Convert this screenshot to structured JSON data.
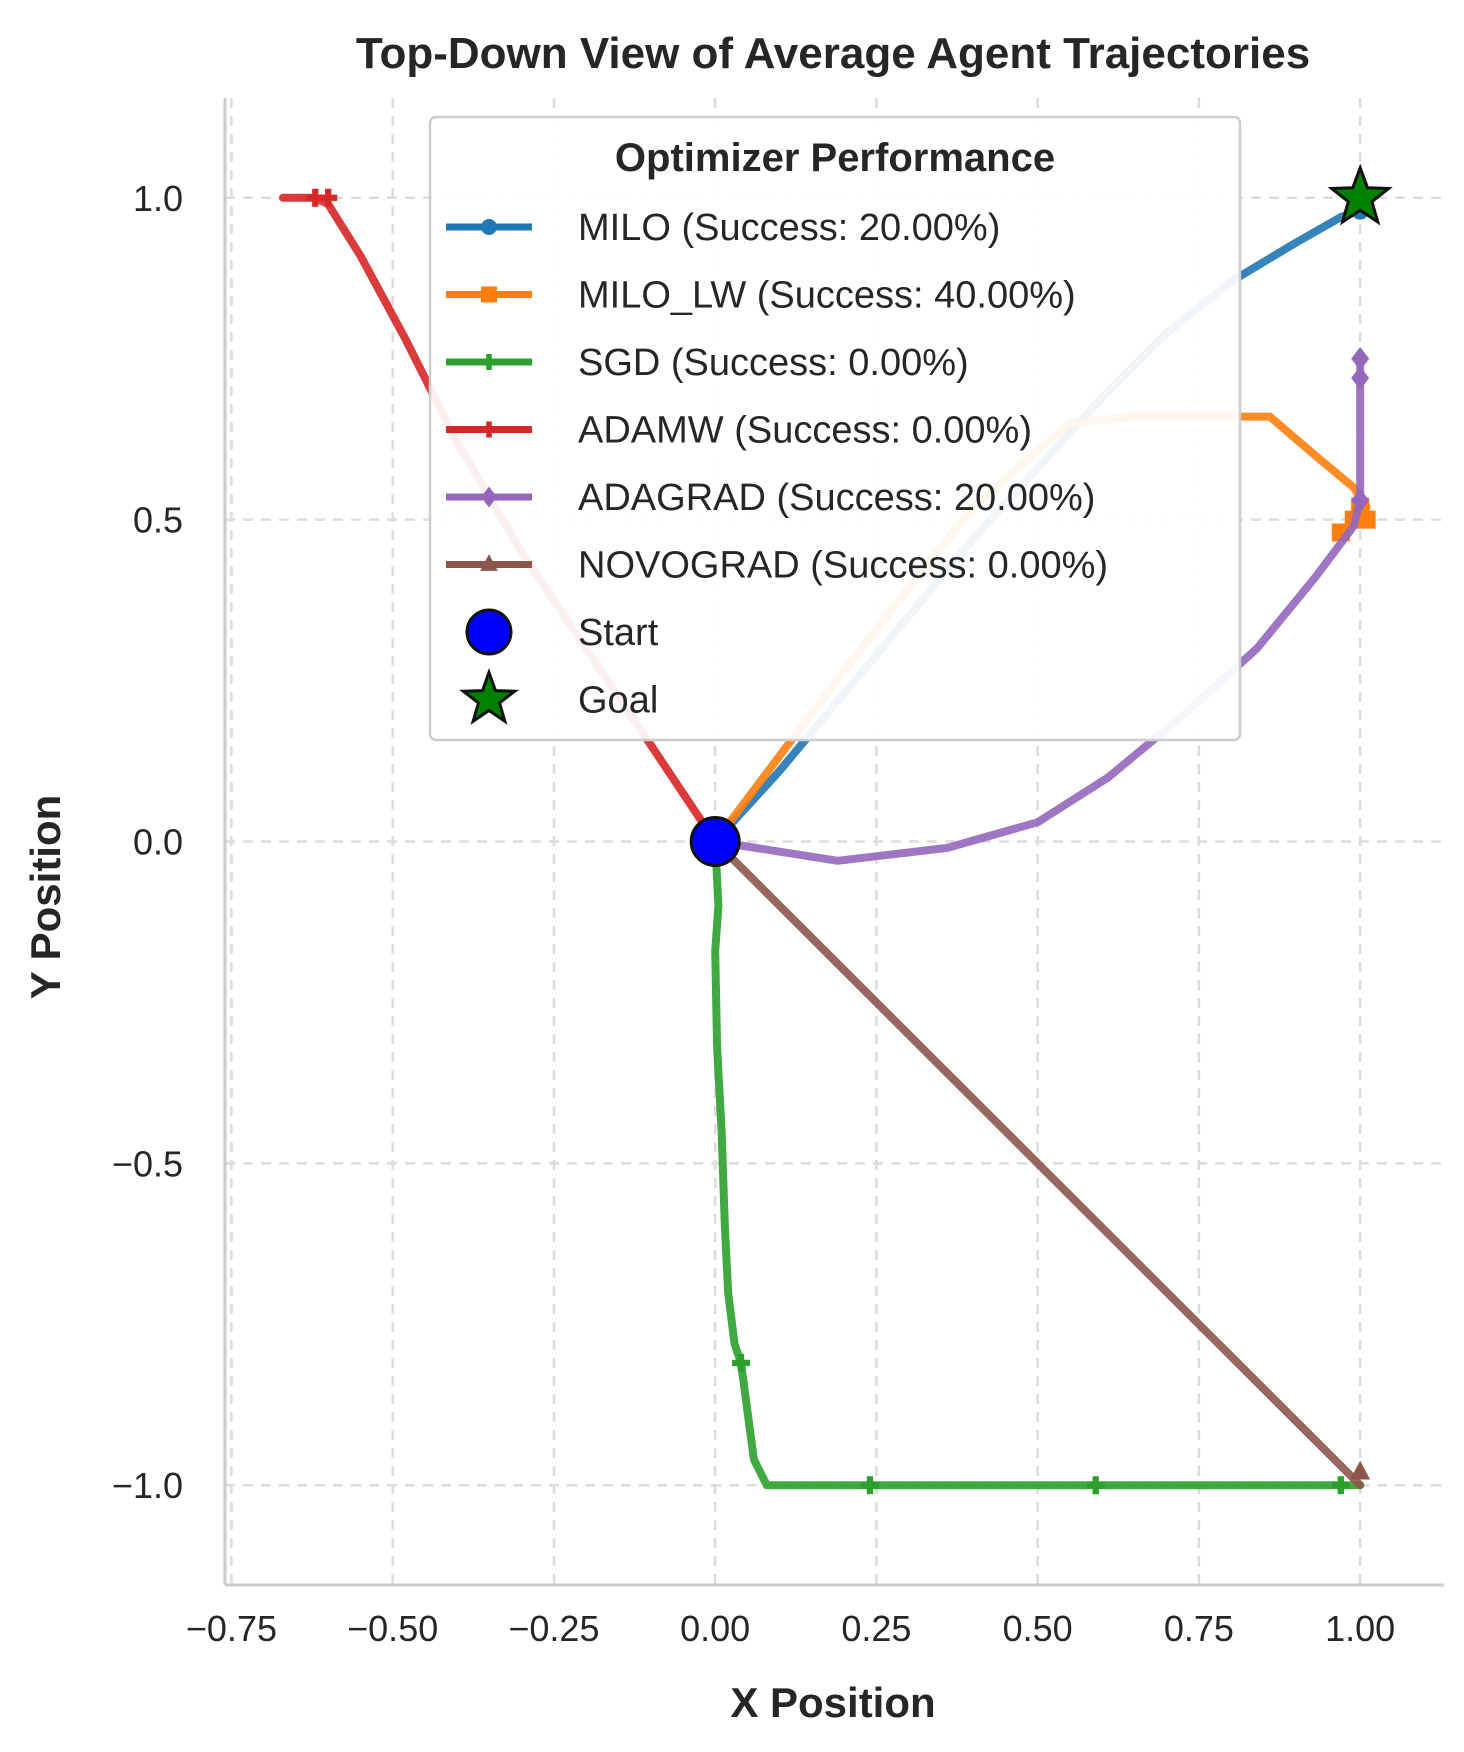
{
  "chart_data": {
    "type": "line",
    "title": "Top-Down View of Average Agent Trajectories",
    "xlabel": "X Position",
    "ylabel": "Y Position",
    "xlim": [
      -0.76,
      1.13
    ],
    "ylim": [
      -1.155,
      1.155
    ],
    "xticks": [
      -0.75,
      -0.5,
      -0.25,
      0.0,
      0.25,
      0.5,
      0.75,
      1.0
    ],
    "xtick_labels": [
      "−0.75",
      "−0.50",
      "−0.25",
      "0.00",
      "0.25",
      "0.50",
      "0.75",
      "1.00"
    ],
    "yticks": [
      -1.0,
      -0.5,
      0.0,
      0.5,
      1.0
    ],
    "ytick_labels": [
      "−1.0",
      "−0.5",
      "0.0",
      "0.5",
      "1.0"
    ],
    "grid": true,
    "legend": {
      "title": "Optimizer Performance",
      "placement": "top-center",
      "entries": [
        "MILO (Success: 20.00%)",
        "MILO_LW (Success: 40.00%)",
        "SGD (Success: 0.00%)",
        "ADAMW (Success: 0.00%)",
        "ADAGRAD (Success: 20.00%)",
        "NOVOGRAD (Success: 0.00%)",
        "Start",
        "Goal"
      ]
    },
    "series": [
      {
        "name": "MILO",
        "color": "#1f77b4",
        "marker": "circle",
        "x": [
          0.0,
          0.1,
          0.2,
          0.3,
          0.4,
          0.5,
          0.6,
          0.7,
          0.8,
          0.9,
          0.97,
          1.0
        ],
        "y": [
          0.0,
          0.11,
          0.23,
          0.35,
          0.47,
          0.58,
          0.69,
          0.79,
          0.87,
          0.93,
          0.97,
          0.98
        ],
        "marker_points": [
          [
            1.0,
            0.98
          ]
        ]
      },
      {
        "name": "MILO_LW",
        "color": "#ff7f0e",
        "marker": "square",
        "x": [
          0.0,
          0.12,
          0.25,
          0.4,
          0.55,
          0.65,
          0.86,
          0.93,
          0.99,
          1.01,
          1.0,
          0.97
        ],
        "y": [
          0.0,
          0.16,
          0.33,
          0.52,
          0.65,
          0.66,
          0.66,
          0.6,
          0.55,
          0.52,
          0.5,
          0.48
        ],
        "marker_points": [
          [
            0.97,
            0.48
          ],
          [
            0.99,
            0.5
          ],
          [
            1.0,
            0.52
          ],
          [
            1.01,
            0.5
          ]
        ]
      },
      {
        "name": "SGD",
        "color": "#2ca02c",
        "marker": "plus",
        "x": [
          0.0,
          0.005,
          0.0,
          0.003,
          0.01,
          0.015,
          0.02,
          0.03,
          0.04,
          0.06,
          0.08,
          0.24,
          0.59,
          0.8,
          0.97,
          1.0
        ],
        "y": [
          0.0,
          -0.1,
          -0.17,
          -0.32,
          -0.45,
          -0.6,
          -0.7,
          -0.78,
          -0.81,
          -0.96,
          -1.0,
          -1.0,
          -1.0,
          -1.0,
          -1.0,
          -1.0
        ],
        "marker_points": [
          [
            0.04,
            -0.81
          ],
          [
            0.24,
            -1.0
          ],
          [
            0.59,
            -1.0
          ],
          [
            0.97,
            -1.0
          ]
        ]
      },
      {
        "name": "ADAMW",
        "color": "#d62728",
        "marker": "plus",
        "x": [
          0.0,
          -0.1,
          -0.2,
          -0.3,
          -0.4,
          -0.48,
          -0.55,
          -0.6,
          -0.62,
          -0.67
        ],
        "y": [
          0.0,
          0.15,
          0.3,
          0.45,
          0.62,
          0.78,
          0.91,
          0.99,
          1.0,
          1.0
        ],
        "marker_points": [
          [
            -0.6,
            1.0
          ],
          [
            -0.62,
            1.0
          ]
        ]
      },
      {
        "name": "ADAGRAD",
        "color": "#9467bd",
        "marker": "diamond",
        "x": [
          0.0,
          0.19,
          0.36,
          0.5,
          0.61,
          0.73,
          0.84,
          0.93,
          0.99,
          1.0,
          1.0,
          1.0
        ],
        "y": [
          0.0,
          -0.03,
          -0.01,
          0.03,
          0.1,
          0.2,
          0.3,
          0.41,
          0.49,
          0.53,
          0.72,
          0.75
        ],
        "marker_points": [
          [
            1.0,
            0.53
          ],
          [
            1.0,
            0.72
          ],
          [
            1.0,
            0.75
          ]
        ]
      },
      {
        "name": "NOVOGRAD",
        "color": "#8c564b",
        "marker": "triangle",
        "x": [
          0.0,
          1.0
        ],
        "y": [
          0.0,
          -1.0
        ],
        "marker_points": [
          [
            1.0,
            -0.98
          ]
        ]
      }
    ],
    "start": {
      "name": "Start",
      "x": 0.0,
      "y": 0.0,
      "color": "#0000ff"
    },
    "goal": {
      "name": "Goal",
      "x": 1.0,
      "y": 1.0,
      "color": "#008000"
    }
  }
}
